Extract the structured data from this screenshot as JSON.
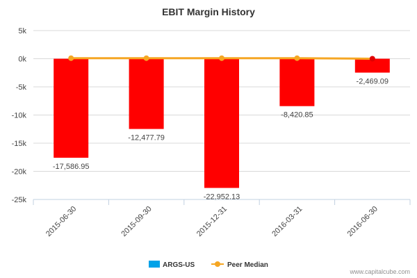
{
  "chart_data": {
    "type": "bar",
    "title": "EBIT Margin History",
    "categories": [
      "2015-06-30",
      "2015-09-30",
      "2015-12-31",
      "2016-03-31",
      "2016-06-30"
    ],
    "ylim": [
      -25000,
      5000
    ],
    "yticks": [
      5000,
      0,
      -5000,
      -10000,
      -15000,
      -20000,
      -25000
    ],
    "ytick_labels": [
      "5k",
      "0k",
      "-5k",
      "-10k",
      "-15k",
      "-20k",
      "-25k"
    ],
    "grid": true,
    "legend_position": "bottom",
    "series": [
      {
        "name": "ARGS-US",
        "kind": "bar",
        "legend_color": "#00a2e8",
        "bar_color": "#ff0000",
        "values": [
          -17586.95,
          -12477.79,
          -22952.13,
          -8420.85,
          -2469.09
        ],
        "labels": [
          "-17,586.95",
          "-12,477.79",
          "-22,952.13",
          "-8,420.85",
          "-2,469.09"
        ]
      },
      {
        "name": "Peer Median",
        "kind": "line",
        "color": "#f5a623",
        "last_marker_color": "#e00000",
        "values": [
          100,
          100,
          100,
          100,
          0
        ]
      }
    ]
  },
  "credit": "www.capitalcube.com"
}
